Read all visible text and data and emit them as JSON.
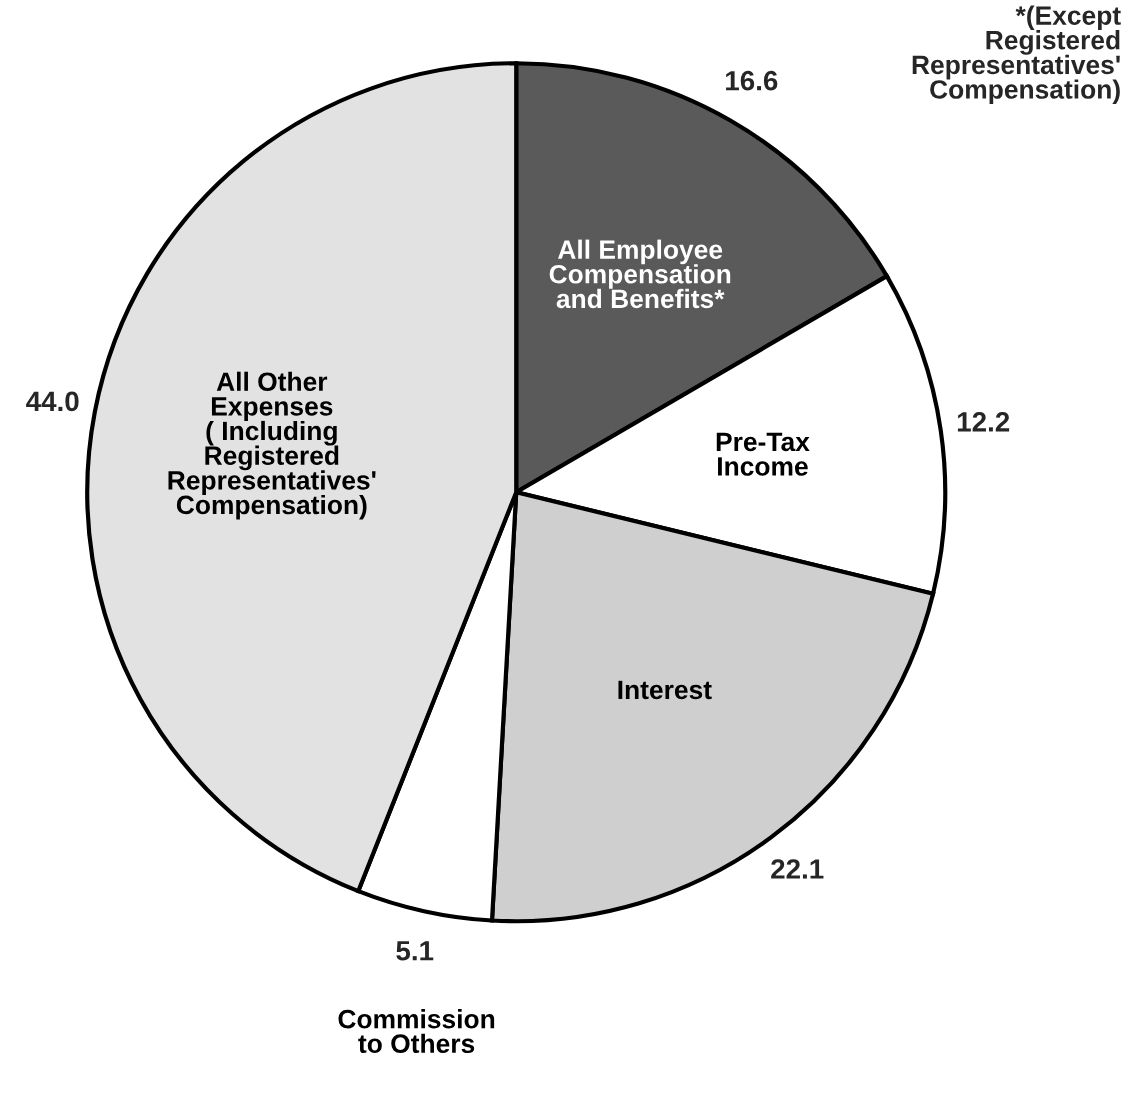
{
  "chart_data": {
    "type": "pie",
    "categories": [
      "All Employee\nCompensation\nand Benefits*",
      "Pre-Tax\nIncome",
      "Interest",
      "Commission\nto Others",
      "All Other\nExpenses\n( Including\nRegistered\nRepresentatives'\nCompensation)"
    ],
    "values": [
      16.6,
      12.2,
      22.1,
      5.1,
      44.0
    ],
    "colors": [
      "#5a5a5a",
      "#ffffff",
      "#cfcfcf",
      "#ffffff",
      "#e2e2e2"
    ],
    "value_labels": [
      "16.6",
      "12.2",
      "22.1",
      "5.1",
      "44.0"
    ],
    "annotations": [
      "*(Except\nRegistered\nRepresentatives'\nCompensation)"
    ]
  }
}
